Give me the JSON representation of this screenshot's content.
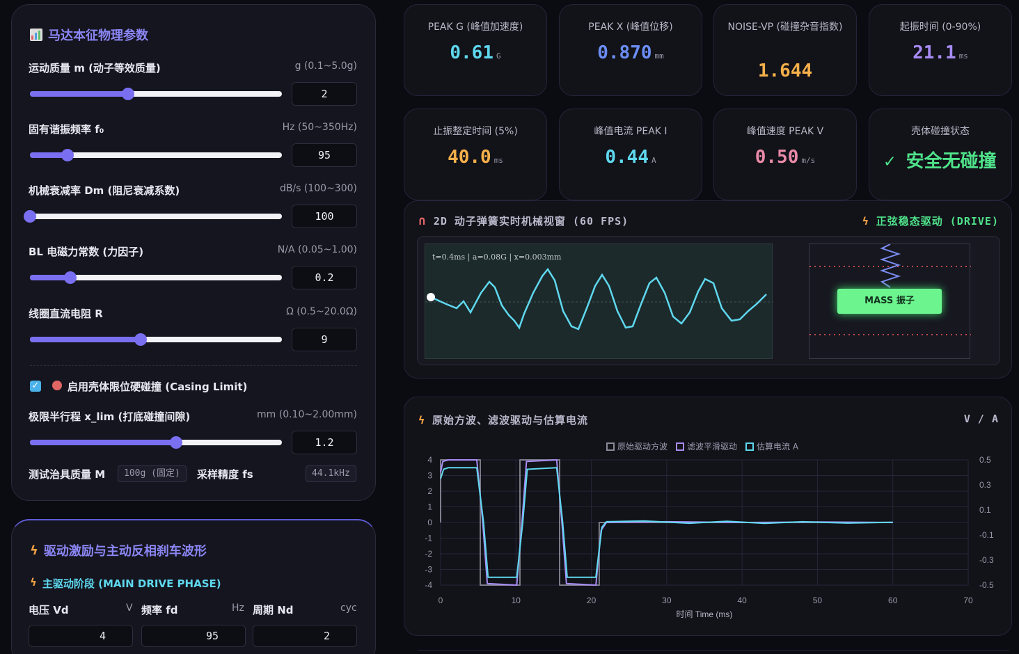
{
  "params": {
    "title": "马达本征物理参数",
    "rows": [
      {
        "label": "运动质量 m (动子等效质量)",
        "unit": "g (0.1~5.0g)",
        "value": "2",
        "fraction": 0.39
      },
      {
        "label": "固有谐振频率 f₀",
        "unit": "Hz (50~350Hz)",
        "value": "95",
        "fraction": 0.15
      },
      {
        "label": "机械衰减率 Dm (阻尼衰减系数)",
        "unit": "dB/s (100~300)",
        "value": "100",
        "fraction": 0.0
      },
      {
        "label": "BL 电磁力常数 (力因子)",
        "unit": "N/A (0.05~1.00)",
        "value": "0.2",
        "fraction": 0.16
      },
      {
        "label": "线圈直流电阻 R",
        "unit": "Ω (0.5~20.0Ω)",
        "value": "9",
        "fraction": 0.44
      }
    ],
    "casing_label": "启用壳体限位硬碰撞 (Casing Limit)",
    "xlim": {
      "label": "极限半行程 x_lim (打底碰撞间隙)",
      "unit": "mm (0.10~2.00mm)",
      "value": "1.2",
      "fraction": 0.58
    },
    "fixture_label": "测试治具质量 M",
    "fixture_value": "100g (固定)",
    "fs_label": "采样精度 fs",
    "fs_value": "44.1kHz"
  },
  "drive": {
    "title": "驱动激励与主动反相刹车波形",
    "phase": "主驱动阶段 (MAIN DRIVE PHASE)",
    "fields": [
      {
        "label": "电压 Vd",
        "unit": "V",
        "value": "4"
      },
      {
        "label": "频率 fd",
        "unit": "Hz",
        "value": "95"
      },
      {
        "label": "周期 Nd",
        "unit": "cyc",
        "value": "2"
      }
    ]
  },
  "metrics": [
    {
      "label": "PEAK G (峰值加速度)",
      "value": "0.61",
      "unit": "G",
      "color": "#5ed8ee"
    },
    {
      "label": "PEAK X (峰值位移)",
      "value": "0.870",
      "unit": "mm",
      "color": "#6b8ef5"
    },
    {
      "label": "NOISE-VP (碰撞杂音指数)",
      "value": "1.644",
      "unit": "",
      "color": "#f5b04a"
    },
    {
      "label": "起振时间 (0-90%)",
      "value": "21.1",
      "unit": "ms",
      "color": "#a88cf5"
    },
    {
      "label": "止振整定时间 (5%)",
      "value": "40.0",
      "unit": "ms",
      "color": "#f5b04a"
    },
    {
      "label": "峰值电流 PEAK I",
      "value": "0.44",
      "unit": "A",
      "color": "#5ed8ee"
    },
    {
      "label": "峰值速度 PEAK V",
      "value": "0.50",
      "unit": "m/s",
      "color": "#e98aa8"
    },
    {
      "label": "壳体碰撞状态",
      "value": "✓ 安全无碰撞",
      "unit": "",
      "color": "#4fe38a"
    }
  ],
  "viewport": {
    "title": "2D 动子弹簧实时机械视窗 (60 FPS)",
    "mode": "正弦稳态驱动 (DRIVE)",
    "readout": "t=0.4ms | a=0.08G | x=0.003mm",
    "mass_label": "MASS 振子"
  },
  "chart_data": {
    "type": "line",
    "title": "原始方波、滤波驱动与估算电流",
    "unit_label": "V / A",
    "xlabel": "时间 Time (ms)",
    "xlim": [
      0,
      70
    ],
    "ylim": [
      -4,
      4
    ],
    "y2lim": [
      -0.5,
      0.5
    ],
    "x_ticks": [
      "0",
      "10",
      "20",
      "30",
      "40",
      "50",
      "60",
      "70"
    ],
    "y_ticks": [
      "4",
      "3",
      "2",
      "1",
      "0",
      "-1",
      "-2",
      "-3",
      "-4"
    ],
    "y2_ticks": [
      "0.5",
      "0.3",
      "0.1",
      "-0.1",
      "-0.3",
      "-0.5"
    ],
    "series": [
      {
        "name": "原始驱动方波",
        "color": "#cfcfe0",
        "x": [
          0,
          0,
          5.26,
          5.26,
          10.53,
          10.53,
          15.79,
          15.79,
          21.05,
          21.05,
          60
        ],
        "y": [
          0,
          4,
          4,
          -4,
          -4,
          4,
          4,
          -4,
          -4,
          0,
          0
        ]
      },
      {
        "name": "滤波平滑驱动",
        "color": "#a88cf5",
        "x": [
          0,
          0.3,
          1,
          4.8,
          5.6,
          6.2,
          10.1,
          10.8,
          11.4,
          15.4,
          16.1,
          16.7,
          20.6,
          21.3,
          22,
          30,
          40,
          50,
          60
        ],
        "y": [
          3.2,
          3.9,
          4.0,
          4.0,
          0,
          -3.9,
          -4.0,
          0,
          3.9,
          4.0,
          0,
          -3.9,
          -4.0,
          -0.5,
          0,
          0.05,
          0,
          0.03,
          0
        ]
      },
      {
        "name": "估算电流 A",
        "color": "#5ed8ee",
        "x": [
          0,
          0.4,
          1,
          4.8,
          5.7,
          6.3,
          10.1,
          10.9,
          11.5,
          15.4,
          16.2,
          16.8,
          20.6,
          21.4,
          22,
          27,
          33,
          38,
          43,
          48,
          54,
          60
        ],
        "y": [
          2.8,
          3.4,
          3.5,
          3.5,
          0,
          -3.5,
          -3.5,
          0,
          3.4,
          3.5,
          0,
          -3.5,
          -3.5,
          -0.3,
          0.05,
          0.1,
          -0.05,
          0.08,
          -0.06,
          0.05,
          -0.04,
          0.02
        ]
      }
    ]
  }
}
